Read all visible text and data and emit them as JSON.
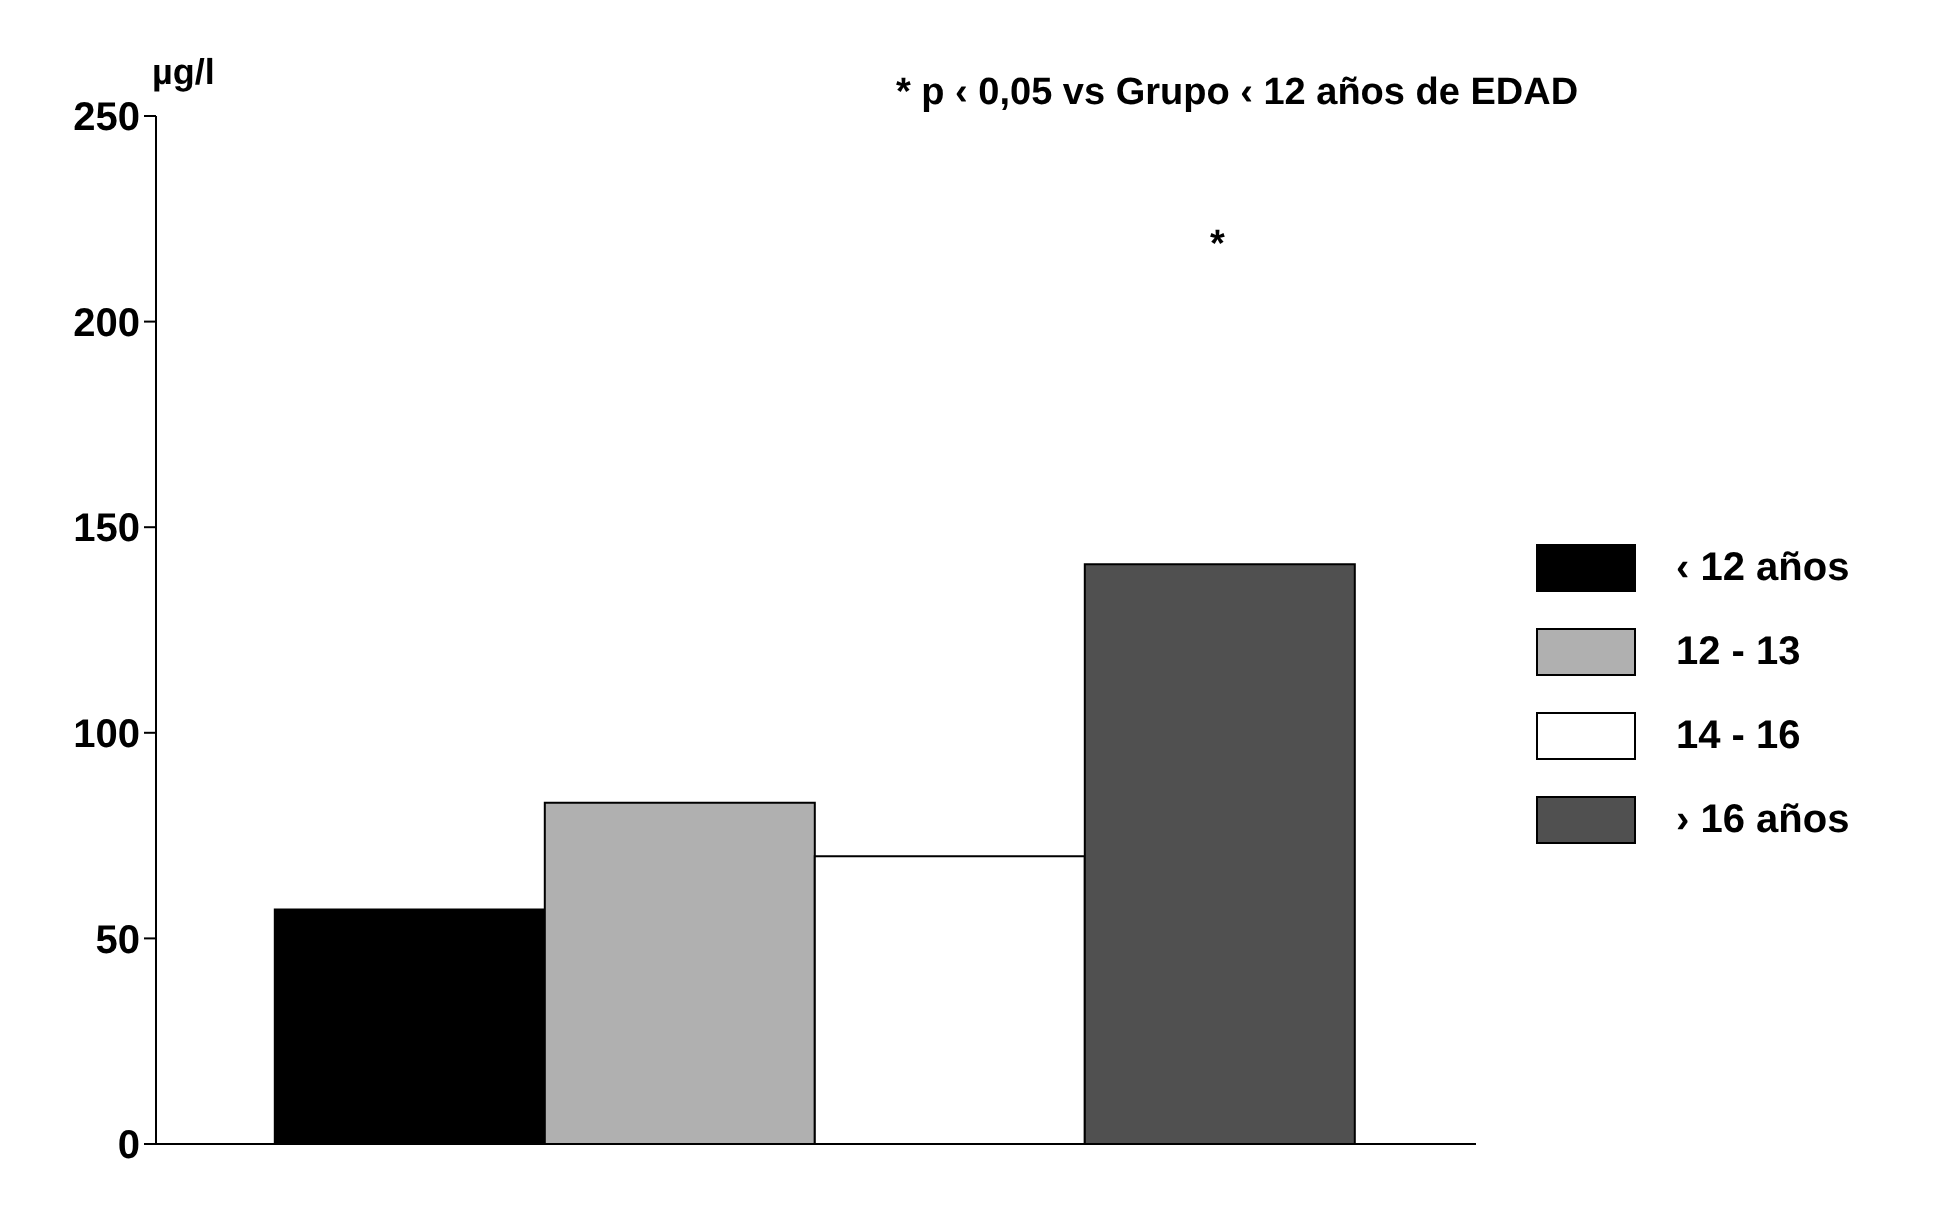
{
  "chart_data": {
    "type": "bar",
    "ylabel": "µg/l",
    "categories": [
      null
    ],
    "series": [
      {
        "name": "‹ 12 años",
        "color": "#000000",
        "values": [
          57
        ]
      },
      {
        "name": "12 - 13",
        "color": "#b0b0b0",
        "values": [
          83
        ]
      },
      {
        "name": "14 - 16",
        "color": "#ffffff",
        "values": [
          70
        ]
      },
      {
        "name": "› 16 años",
        "color": "#505050",
        "values": [
          141
        ]
      }
    ],
    "ylim": [
      0,
      250
    ],
    "yticks": [
      0,
      50,
      100,
      150,
      200,
      250
    ],
    "legend": "right",
    "annotations": [
      "* p ‹ 0,05 vs Grupo ‹ 12 años de EDAD",
      "*"
    ]
  }
}
